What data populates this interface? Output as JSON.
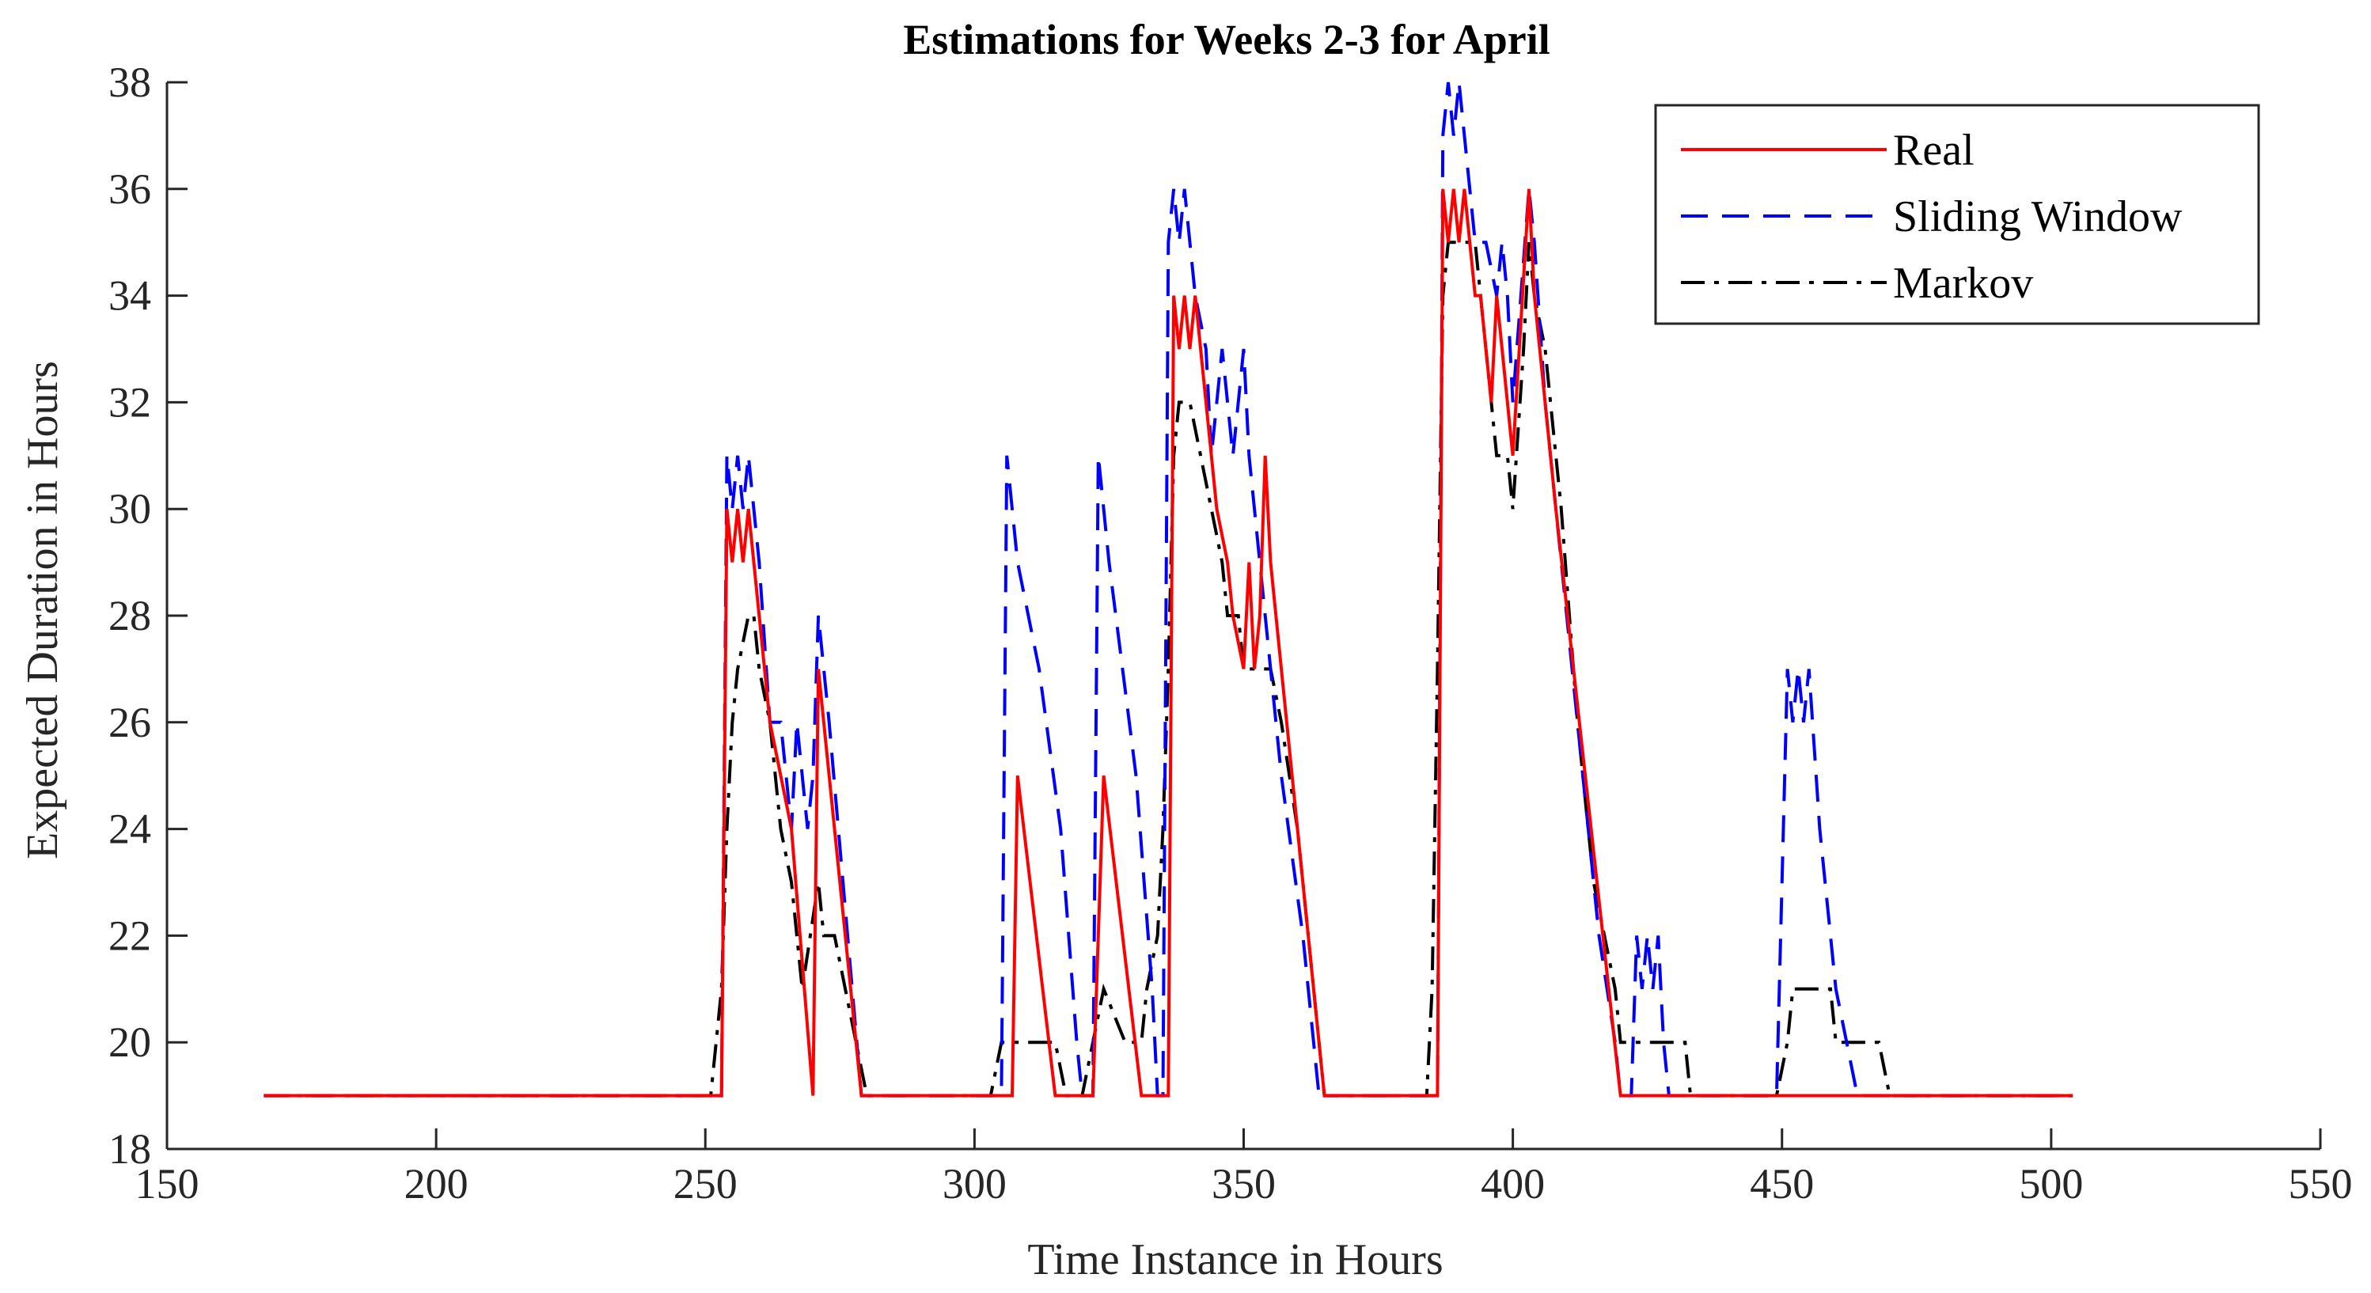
{
  "chart_data": {
    "type": "line",
    "title": "Estimations for Weeks 2-3 for April",
    "xlabel": "Time Instance in Hours",
    "ylabel": "Expected Duration in Hours",
    "xlim": [
      150,
      550
    ],
    "ylim": [
      18,
      38
    ],
    "xticks": [
      150,
      200,
      250,
      300,
      350,
      400,
      450,
      500,
      550
    ],
    "yticks": [
      18,
      20,
      22,
      24,
      26,
      28,
      30,
      32,
      34,
      36,
      38
    ],
    "grid": false,
    "legend_position": "top-right",
    "series": [
      {
        "name": "Real",
        "color": "#ff0000",
        "style": "solid",
        "points": [
          [
            168,
            19
          ],
          [
            253,
            19
          ],
          [
            254,
            30
          ],
          [
            255,
            29
          ],
          [
            256,
            30
          ],
          [
            257,
            29
          ],
          [
            258,
            30
          ],
          [
            259,
            29
          ],
          [
            260,
            28
          ],
          [
            262,
            26
          ],
          [
            264,
            25
          ],
          [
            266,
            24
          ],
          [
            270,
            19
          ],
          [
            271,
            27
          ],
          [
            272,
            26
          ],
          [
            273,
            25
          ],
          [
            279,
            19
          ],
          [
            307,
            19
          ],
          [
            308,
            25
          ],
          [
            315,
            19
          ],
          [
            322,
            19
          ],
          [
            324,
            25
          ],
          [
            331,
            19
          ],
          [
            336,
            19
          ],
          [
            337,
            34
          ],
          [
            338,
            33
          ],
          [
            339,
            34
          ],
          [
            340,
            33
          ],
          [
            341,
            34
          ],
          [
            342,
            33
          ],
          [
            343,
            32
          ],
          [
            344,
            31
          ],
          [
            345,
            30
          ],
          [
            347,
            29
          ],
          [
            348,
            28
          ],
          [
            350,
            27
          ],
          [
            351,
            29
          ],
          [
            352,
            27
          ],
          [
            353,
            28
          ],
          [
            354,
            31
          ],
          [
            355,
            29
          ],
          [
            357,
            27
          ],
          [
            359,
            25
          ],
          [
            361,
            23
          ],
          [
            365,
            19
          ],
          [
            386,
            19
          ],
          [
            387,
            36
          ],
          [
            388,
            35
          ],
          [
            389,
            36
          ],
          [
            390,
            35
          ],
          [
            391,
            36
          ],
          [
            392,
            35
          ],
          [
            393,
            34
          ],
          [
            394,
            34
          ],
          [
            395,
            33
          ],
          [
            396,
            32
          ],
          [
            397,
            34
          ],
          [
            398,
            33
          ],
          [
            400,
            31
          ],
          [
            403,
            36
          ],
          [
            404,
            34
          ],
          [
            406,
            32
          ],
          [
            408,
            30
          ],
          [
            420,
            19
          ],
          [
            504,
            19
          ]
        ]
      },
      {
        "name": "Sliding Window",
        "color": "#0000ff",
        "style": "dashed",
        "points": [
          [
            168,
            19
          ],
          [
            253,
            19
          ],
          [
            254,
            31
          ],
          [
            255,
            30
          ],
          [
            256,
            31
          ],
          [
            257,
            30
          ],
          [
            258,
            31
          ],
          [
            259,
            30
          ],
          [
            260,
            29
          ],
          [
            262,
            26
          ],
          [
            264,
            26
          ],
          [
            266,
            24
          ],
          [
            267,
            26
          ],
          [
            268,
            25
          ],
          [
            269,
            24
          ],
          [
            270,
            25
          ],
          [
            271,
            28
          ],
          [
            272,
            27
          ],
          [
            273,
            26
          ],
          [
            279,
            19
          ],
          [
            305,
            19
          ],
          [
            306,
            31
          ],
          [
            307,
            30
          ],
          [
            308,
            29
          ],
          [
            312,
            27
          ],
          [
            316,
            24
          ],
          [
            319,
            20
          ],
          [
            320,
            19
          ],
          [
            322,
            19
          ],
          [
            323,
            31
          ],
          [
            324,
            30
          ],
          [
            325,
            29
          ],
          [
            330,
            25
          ],
          [
            333,
            21
          ],
          [
            334,
            19
          ],
          [
            335,
            19
          ],
          [
            336,
            35
          ],
          [
            337,
            36
          ],
          [
            338,
            35
          ],
          [
            339,
            36
          ],
          [
            340,
            35
          ],
          [
            341,
            34
          ],
          [
            343,
            33
          ],
          [
            344,
            31
          ],
          [
            345,
            32
          ],
          [
            346,
            33
          ],
          [
            347,
            32
          ],
          [
            348,
            31
          ],
          [
            349,
            32
          ],
          [
            350,
            33
          ],
          [
            351,
            31
          ],
          [
            352,
            30
          ],
          [
            354,
            28
          ],
          [
            357,
            25
          ],
          [
            361,
            22
          ],
          [
            364,
            19
          ],
          [
            386,
            19
          ],
          [
            387,
            37
          ],
          [
            388,
            38
          ],
          [
            389,
            37
          ],
          [
            390,
            38
          ],
          [
            391,
            37
          ],
          [
            393,
            35
          ],
          [
            395,
            35
          ],
          [
            397,
            34
          ],
          [
            398,
            35
          ],
          [
            399,
            34
          ],
          [
            400,
            32
          ],
          [
            403,
            36
          ],
          [
            404,
            35
          ],
          [
            406,
            32
          ],
          [
            408,
            30
          ],
          [
            410,
            28
          ],
          [
            413,
            25
          ],
          [
            416,
            22
          ],
          [
            419,
            20
          ],
          [
            420,
            19
          ],
          [
            422,
            19
          ],
          [
            423,
            22
          ],
          [
            424,
            21
          ],
          [
            425,
            22
          ],
          [
            426,
            21
          ],
          [
            427,
            22
          ],
          [
            428,
            20
          ],
          [
            429,
            19
          ],
          [
            449,
            19
          ],
          [
            451,
            27
          ],
          [
            452,
            26
          ],
          [
            453,
            27
          ],
          [
            454,
            26
          ],
          [
            455,
            27
          ],
          [
            457,
            24
          ],
          [
            460,
            21
          ],
          [
            462,
            20
          ],
          [
            464,
            19
          ],
          [
            504,
            19
          ]
        ]
      },
      {
        "name": "Markov",
        "color": "#000000",
        "style": "dashdot",
        "points": [
          [
            168,
            19
          ],
          [
            251,
            19
          ],
          [
            253,
            21
          ],
          [
            254,
            24
          ],
          [
            255,
            26
          ],
          [
            256,
            27
          ],
          [
            258,
            28
          ],
          [
            259,
            28
          ],
          [
            260,
            27
          ],
          [
            262,
            26
          ],
          [
            264,
            24
          ],
          [
            266,
            23
          ],
          [
            268,
            21
          ],
          [
            271,
            23
          ],
          [
            272,
            22
          ],
          [
            274,
            22
          ],
          [
            276,
            21
          ],
          [
            278,
            20
          ],
          [
            280,
            19
          ],
          [
            303,
            19
          ],
          [
            305,
            20
          ],
          [
            312,
            20
          ],
          [
            315,
            20
          ],
          [
            317,
            19
          ],
          [
            320,
            19
          ],
          [
            322,
            20
          ],
          [
            324,
            21
          ],
          [
            328,
            20
          ],
          [
            331,
            20
          ],
          [
            332,
            21
          ],
          [
            334,
            22
          ],
          [
            335,
            24
          ],
          [
            336,
            27
          ],
          [
            337,
            31
          ],
          [
            338,
            32
          ],
          [
            340,
            32
          ],
          [
            342,
            31
          ],
          [
            344,
            30
          ],
          [
            346,
            29
          ],
          [
            347,
            28
          ],
          [
            349,
            28
          ],
          [
            350,
            27
          ],
          [
            355,
            27
          ],
          [
            357,
            26
          ],
          [
            360,
            24
          ],
          [
            362,
            22
          ],
          [
            364,
            20
          ],
          [
            365,
            19
          ],
          [
            384,
            19
          ],
          [
            385,
            21
          ],
          [
            386,
            27
          ],
          [
            387,
            34
          ],
          [
            388,
            35
          ],
          [
            393,
            35
          ],
          [
            394,
            34
          ],
          [
            397,
            31
          ],
          [
            399,
            31
          ],
          [
            400,
            30
          ],
          [
            402,
            33
          ],
          [
            403,
            35
          ],
          [
            404,
            34
          ],
          [
            406,
            33
          ],
          [
            409,
            30
          ],
          [
            412,
            26
          ],
          [
            415,
            23
          ],
          [
            419,
            21
          ],
          [
            420,
            20
          ],
          [
            425,
            20
          ],
          [
            432,
            20
          ],
          [
            433,
            19
          ],
          [
            449,
            19
          ],
          [
            451,
            20
          ],
          [
            452,
            21
          ],
          [
            459,
            21
          ],
          [
            460,
            20
          ],
          [
            465,
            20
          ],
          [
            468,
            20
          ],
          [
            470,
            19
          ],
          [
            504,
            19
          ]
        ]
      }
    ]
  }
}
